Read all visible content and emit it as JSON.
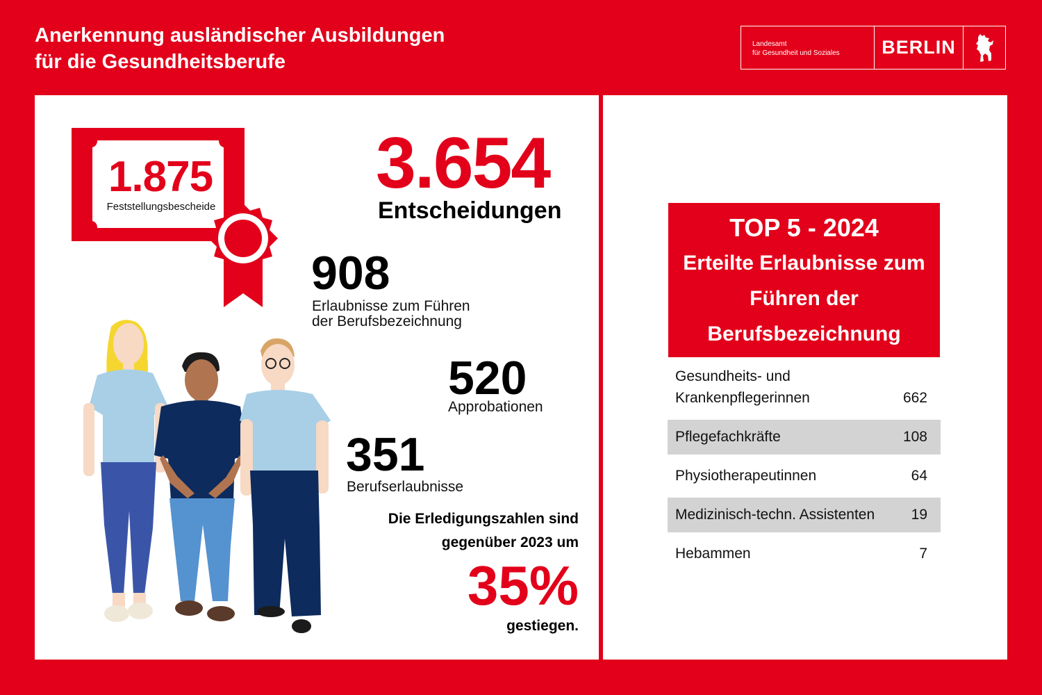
{
  "header": {
    "title_line1": "Anerkennung ausländischer Ausbildungen",
    "title_line2": "für die Gesundheitsberufe"
  },
  "logo": {
    "agency_line1": "Landesamt",
    "agency_line2": "für Gesundheit und Soziales",
    "city": "BERLIN",
    "emblem": "berlin-bear-icon"
  },
  "stats": {
    "certificates": {
      "value": "1.875",
      "label": "Feststellungsbescheide"
    },
    "decisions": {
      "value": "3.654",
      "label": "Entscheidungen"
    },
    "permits": {
      "value": "908",
      "label_line1": "Erlaubnisse zum Führen",
      "label_line2": "der Berufsbezeichnung"
    },
    "approbations": {
      "value": "520",
      "label": "Approbationen"
    },
    "professional_permits": {
      "value": "351",
      "label": "Berufserlaubnisse"
    }
  },
  "growth": {
    "line1": "Die Erledigungszahlen sind",
    "line2": "gegenüber 2023 um",
    "percent": "35%",
    "line3": "gestiegen."
  },
  "top5": {
    "heading": "TOP 5 - 2024",
    "sub_line1": "Erteilte Erlaubnisse zum",
    "sub_line2": "Führen der",
    "sub_line3": "Berufsbezeichnung",
    "rows": [
      {
        "name_line1": "Gesundheits- und",
        "name_line2": "Krankenpflegerinnen",
        "value": "662"
      },
      {
        "name": "Pflegefachkräfte",
        "value": "108"
      },
      {
        "name": "Physiotherapeutinnen",
        "value": "64"
      },
      {
        "name": "Medizinisch-techn. Assistenten",
        "value": "19"
      },
      {
        "name": "Hebammen",
        "value": "7"
      }
    ]
  },
  "colors": {
    "brand_red": "#e2001a",
    "light_blue": "#a8cfe6",
    "navy": "#0d2b5c",
    "row_shade": "#d3d3d3"
  }
}
